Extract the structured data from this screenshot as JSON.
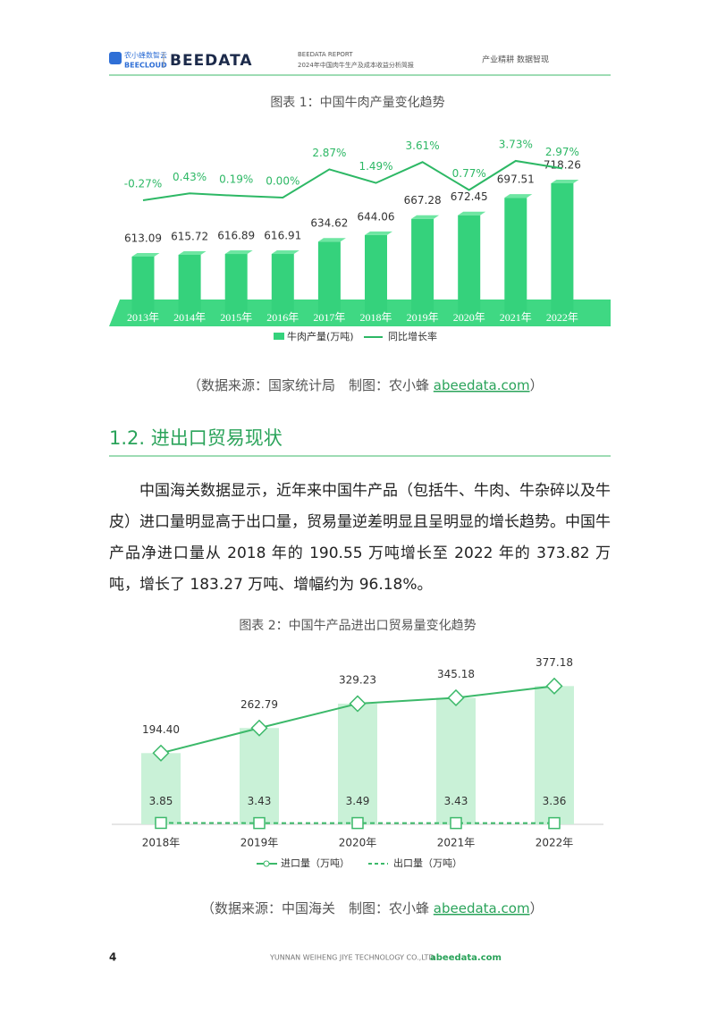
{
  "header": {
    "logo_text": "农小蜂数智云",
    "logo_sub": "BEECLOUD",
    "brand": "BEEDATA",
    "report": "BEEDATA REPORT",
    "report_title": "2024年中国肉牛生产及成本收益分析简报",
    "tagline": "产业精耕  数据智现"
  },
  "figure1": {
    "title": "图表 1：中国牛肉产量变化趋势",
    "chart_data": {
      "type": "bar-line",
      "categories": [
        "2013年",
        "2014年",
        "2015年",
        "2016年",
        "2017年",
        "2018年",
        "2019年",
        "2020年",
        "2021年",
        "2022年"
      ],
      "series": [
        {
          "name": "牛肉产量(万吨)",
          "color": "#35d27c",
          "values": [
            613.09,
            615.72,
            616.89,
            616.91,
            634.62,
            644.06,
            667.28,
            672.45,
            697.51,
            718.26
          ]
        },
        {
          "name": "同比增长率",
          "color": "#2db865",
          "values": [
            -0.27,
            0.43,
            0.19,
            0.0,
            2.87,
            1.49,
            3.61,
            0.77,
            3.73,
            2.97
          ],
          "value_labels": [
            "-0.27%",
            "0.43%",
            "0.19%",
            "0.00%",
            "2.87%",
            "1.49%",
            "3.61%",
            "0.77%",
            "3.73%",
            "2.97%"
          ]
        }
      ]
    },
    "source": "（数据来源：国家统计局　制图：农小蜂",
    "source_link": "abeedata.com",
    "source_end": "）"
  },
  "section": {
    "title": "1.2. 进出口贸易现状"
  },
  "paragraph": "中国海关数据显示，近年来中国牛产品（包括牛、牛肉、牛杂碎以及牛皮）进口量明显高于出口量，贸易量逆差明显且呈明显的增长趋势。中国牛产品净进口量从 2018 年的 190.55 万吨增长至 2022 年的 373.82 万吨，增长了 183.27 万吨、增幅约为 96.18%。",
  "figure2": {
    "title": "图表 2：中国牛产品进出口贸易量变化趋势",
    "chart_data": {
      "type": "bar-line",
      "categories": [
        "2018年",
        "2019年",
        "2020年",
        "2021年",
        "2022年"
      ],
      "series": [
        {
          "name": "进口量（万吨）",
          "color": "#3cb96a",
          "values": [
            194.4,
            262.79,
            329.23,
            345.18,
            377.18
          ],
          "value_labels": [
            "194.40",
            "262.79",
            "329.23",
            "345.18",
            "377.18"
          ]
        },
        {
          "name": "出口量（万吨）",
          "color": "#3cb96a",
          "values": [
            3.85,
            3.43,
            3.49,
            3.43,
            3.36
          ]
        }
      ]
    },
    "source": "（数据来源：中国海关　制图：农小蜂",
    "source_link": "abeedata.com",
    "source_end": "）"
  },
  "footer": {
    "page": "4",
    "company": "YUNNAN WEIHENG JIYE TECHNOLOGY CO.,LTD.",
    "site": "abeedata.com"
  }
}
